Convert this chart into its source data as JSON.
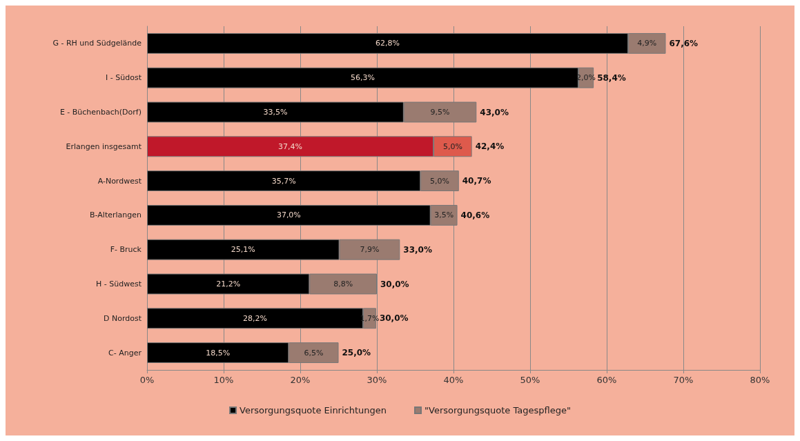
{
  "chart_data": {
    "type": "bar",
    "orientation": "horizontal",
    "stacked": true,
    "categories": [
      "G - RH und Südgelände",
      "I - Südost",
      "E - Büchenbach(Dorf)",
      "Erlangen insgesamt",
      "A-Nordwest",
      "B-Alterlangen",
      "F- Bruck",
      "H - Südwest",
      "D Nordost",
      "C- Anger"
    ],
    "series": [
      {
        "name": "Versorgungsquote Einrichtungen",
        "color": "#000000",
        "colors": [
          "#000000",
          "#000000",
          "#000000",
          "#c0182a",
          "#000000",
          "#000000",
          "#000000",
          "#000000",
          "#000000",
          "#000000"
        ],
        "values": [
          62.8,
          56.3,
          33.5,
          37.4,
          35.7,
          37.0,
          25.1,
          21.2,
          28.2,
          18.5
        ],
        "value_labels": [
          "62,8%",
          "56,3%",
          "33,5%",
          "37,4%",
          "35,7%",
          "37,0%",
          "25,1%",
          "21,2%",
          "28,2%",
          "18,5%"
        ]
      },
      {
        "name": "\"Versorgungsquote Tagespflege\"",
        "color": "#9a7b70",
        "colors": [
          "#9a7b70",
          "#9a7b70",
          "#9a7b70",
          "#de5a4c",
          "#9a7b70",
          "#9a7b70",
          "#9a7b70",
          "#9a7b70",
          "#9a7b70",
          "#9a7b70"
        ],
        "values": [
          4.9,
          2.0,
          9.5,
          5.0,
          5.0,
          3.5,
          7.9,
          8.8,
          1.7,
          6.5
        ],
        "value_labels": [
          "4,9%",
          "2,0%",
          "9,5%",
          "5,0%",
          "5,0%",
          "3,5%",
          "7,9%",
          "8,8%",
          "1,7%",
          "6,5%"
        ]
      }
    ],
    "totals": [
      "67,6%",
      "58,4%",
      "43,0%",
      "42,4%",
      "40,7%",
      "40,6%",
      "33,0%",
      "30,0%",
      "30,0%",
      "25,0%"
    ],
    "xlim": [
      0,
      80
    ],
    "xticks": [
      {
        "value": 0,
        "label": "0%"
      },
      {
        "value": 10,
        "label": "10%"
      },
      {
        "value": 20,
        "label": "20%"
      },
      {
        "value": 30,
        "label": "30%"
      },
      {
        "value": 40,
        "label": "40%"
      },
      {
        "value": 50,
        "label": "50%"
      },
      {
        "value": 60,
        "label": "60%"
      },
      {
        "value": 70,
        "label": "70%"
      },
      {
        "value": 80,
        "label": "80%"
      }
    ],
    "grid": "x",
    "legend": "bottom"
  }
}
